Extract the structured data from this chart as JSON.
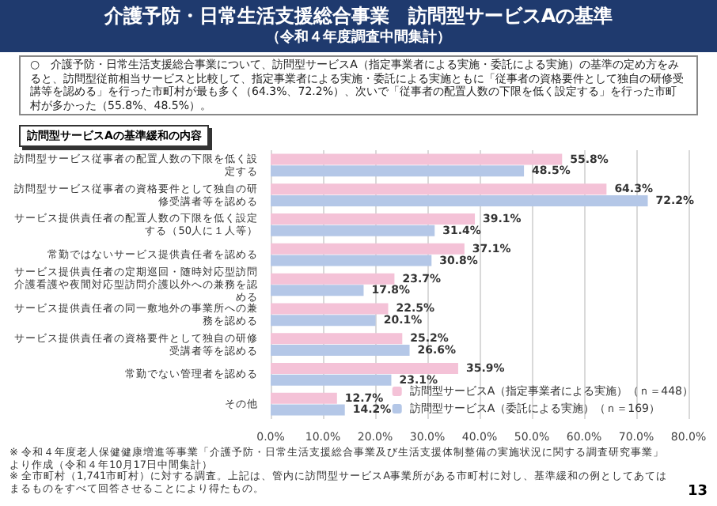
{
  "chart_data": {
    "type": "bar",
    "orientation": "horizontal",
    "title": "介護予防・日常生活支援総合事業　訪問型サービスAの基準",
    "subtitle": "（令和４年度調査中間集計）",
    "annotations": [
      "○　介護予防・日常生活支援総合事業について、訪問型サービスA（指定事業者による実施・委託による実施）の基準の定め方をみると、訪問型従前相当サービスと比較して、指定事業者による実施・委託による実施ともに「従事者の資格要件として独自の研修受講等を認める」を行った市町村が最も多く（64.3%、72.2%）、次いで「従事者の配置人数の下限を低く設定する」を行った市町村が多かった（55.8%、48.5%）。",
      "訪問型サービスAの基準緩和の内容",
      "※ 令和４年度老人保健健康増進等事業「介護予防・日常生活支援総合事業及び生活支援体制整備の実施状況に関する調査研究事業」より作成（令和４年10月17日中間集計）",
      "※ 全市町村（1,741市町村）に対する調査。上記は、管内に訪問型サービスA事業所がある市町村に対し、基準緩和の例としてあてはまるものをすべて回答させることにより得たもの。",
      "13"
    ],
    "categories": [
      "訪問型サービス従事者の配置人数の下限を低く設定する",
      "訪問型サービス従事者の資格要件として独自の研修受講者等を認める",
      "サービス提供責任者の配置人数の下限を低く設定する（50人に１人等）",
      "常勤ではないサービス提供責任者を認める",
      "サービス提供責任者の定期巡回・随時対応型訪問介護看護や夜間対応型訪問介護以外への兼務を認める",
      "サービス提供責任者の同一敷地外の事業所への兼務を認める",
      "サービス提供責任者の資格要件として独自の研修受講者等を認める",
      "常勤でない管理者を認める",
      "その他"
    ],
    "series": [
      {
        "name": "訪問型サービスA（指定事業者による実施）（ｎ＝448）",
        "color": "#f4c2d7",
        "values": [
          55.8,
          64.3,
          39.1,
          37.1,
          23.7,
          22.5,
          25.2,
          35.9,
          12.7
        ],
        "value_labels": [
          "55.8%",
          "64.3%",
          "39.1%",
          "37.1%",
          "23.7%",
          "22.5%",
          "25.2%",
          "35.9%",
          "12.7%"
        ]
      },
      {
        "name": "訪問型サービスA（委託による実施）（ｎ＝169）",
        "color": "#b4c7e7",
        "values": [
          48.5,
          72.2,
          31.4,
          30.8,
          17.8,
          20.1,
          26.6,
          23.1,
          14.2
        ],
        "value_labels": [
          "48.5%",
          "72.2%",
          "31.4%",
          "30.8%",
          "17.8%",
          "20.1%",
          "26.6%",
          "23.1%",
          "14.2%"
        ]
      }
    ],
    "xlim": [
      0,
      80
    ],
    "xticks": [
      {
        "value": 0,
        "label": "0.0%"
      },
      {
        "value": 10,
        "label": "10.0%"
      },
      {
        "value": 20,
        "label": "20.0%"
      },
      {
        "value": 30,
        "label": "30.0%"
      },
      {
        "value": 40,
        "label": "40.0%"
      },
      {
        "value": 50,
        "label": "50.0%"
      },
      {
        "value": 60,
        "label": "60.0%"
      },
      {
        "value": 70,
        "label": "70.0%"
      },
      {
        "value": 80,
        "label": "80.0%"
      }
    ],
    "grid": "x",
    "legend": "bottom right"
  }
}
